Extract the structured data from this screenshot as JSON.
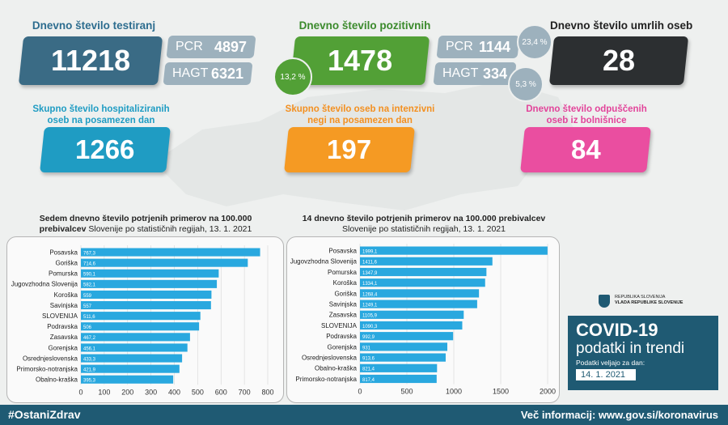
{
  "top": {
    "tests": {
      "title": "Dnevno število testiranj",
      "value": "11218",
      "pcr_label": "PCR",
      "pcr_value": "4897",
      "hagt_label": "HAGT",
      "hagt_value": "6321"
    },
    "positive": {
      "title": "Dnevno število pozitivnih",
      "value": "1478",
      "share": "13,2 %",
      "pcr_label": "PCR",
      "pcr_value": "1144",
      "pcr_share": "23,4 %",
      "hagt_label": "HAGT",
      "hagt_value": "334",
      "hagt_share": "5,3 %"
    },
    "deaths": {
      "title": "Dnevno število umrlih oseb",
      "value": "28"
    }
  },
  "middle": {
    "hospital": {
      "title_line1": "Skupno število hospitaliziranih",
      "title_line2": "oseb na posamezen dan",
      "value": "1266"
    },
    "icu": {
      "title_line1": "Skupno število oseb na intenzivni",
      "title_line2": "negi na posamezen dan",
      "value": "197"
    },
    "discharged": {
      "title_line1": "Dnevno število odpuščenih",
      "title_line2": "oseb iz bolnišnice",
      "value": "84"
    }
  },
  "colors": {
    "tests": "#3a6b85",
    "positive": "#52a036",
    "deaths": "#2c2f31",
    "hospital": "#1f9cc3",
    "icu": "#f59a23",
    "discharged": "#ea4ea0",
    "bar": "#29a8df",
    "mini": "#9db1bd",
    "footer": "#1f5a73",
    "title_blue": "#2d6d8f",
    "title_green": "#3b8a2c",
    "title_orange": "#f39021",
    "title_pink": "#e2449a"
  },
  "chart_data": [
    {
      "type": "bar",
      "title_line1": "Sedem dnevno število potrjenih primerov na 100.000",
      "title_line2_bold": "prebivalcev",
      "title_line2_rest": " Slovenije po statističnih regijah, 13. 1. 2021",
      "categories": [
        "Posavska",
        "Goriška",
        "Pomurska",
        "Jugovzhodna Slovenija",
        "Koroška",
        "Savinjska",
        "SLOVENIJA",
        "Podravska",
        "Zasavska",
        "Gorenjska",
        "Osrednjeslovenska",
        "Primorsko-notranjska",
        "Obalno-kraška"
      ],
      "values": [
        767.3,
        714.6,
        590.1,
        582.1,
        559,
        557,
        511.6,
        506,
        467.2,
        456.1,
        433.3,
        421.9,
        395.3
      ],
      "labels": [
        "767,3",
        "714,6",
        "590,1",
        "582,1",
        "559",
        "557",
        "511,6",
        "506",
        "467,2",
        "456,1",
        "433,3",
        "421,9",
        "395,3"
      ],
      "xlim": [
        0,
        800
      ],
      "ticks": [
        "0",
        "100",
        "200",
        "300",
        "400",
        "500",
        "600",
        "700",
        "800"
      ]
    },
    {
      "type": "bar",
      "title_line1": "14 dnevno število potrjenih primerov na 100.000 prebivalcev",
      "title_line2_bold": "",
      "title_line2_rest": "Slovenije po statističnih regijah, 13. 1. 2021",
      "categories": [
        "Posavska",
        "Jugovzhodna Slovenija",
        "Pomurska",
        "Koroška",
        "Goriška",
        "Savinjska",
        "Zasavska",
        "SLOVENIJA",
        "Podravska",
        "Gorenjska",
        "Osrednjeslovenska",
        "Obalno-kraška",
        "Primorsko-notranjska"
      ],
      "values": [
        1999.1,
        1411.6,
        1347.9,
        1334.1,
        1268.4,
        1249.1,
        1105.9,
        1090.3,
        992.9,
        931,
        913.6,
        821.4,
        817.4
      ],
      "labels": [
        "1999,1",
        "1411,6",
        "1347,9",
        "1334,1",
        "1268,4",
        "1249,1",
        "1105,9",
        "1090,3",
        "992,9",
        "931",
        "913,6",
        "821,4",
        "817,4"
      ],
      "xlim": [
        0,
        2000
      ],
      "ticks": [
        "0",
        "500",
        "1000",
        "1500",
        "2000"
      ]
    }
  ],
  "brand": {
    "gov_line1": "REPUBLIKA SLOVENIJA",
    "gov_line2": "VLADA REPUBLIKE SLOVENIJE",
    "covid_title": "COVID-19",
    "covid_sub": "podatki in trendi",
    "valid_label": "Podatki veljajo za dan:",
    "valid_date": "14. 1. 2021"
  },
  "footer": {
    "hashtag": "#OstaniZdrav",
    "info": "Več informacij: www.gov.si/koronavirus"
  }
}
